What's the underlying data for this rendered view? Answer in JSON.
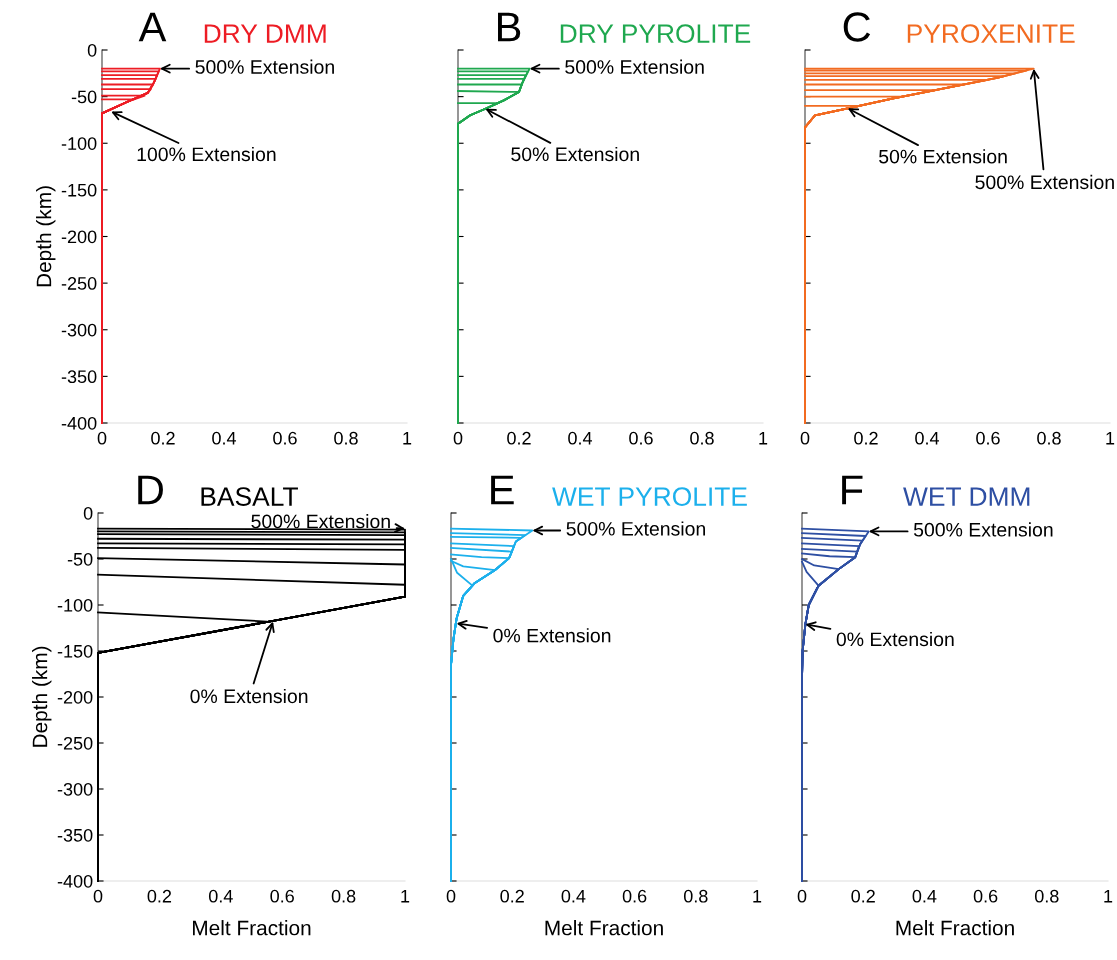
{
  "chart_data": [
    {
      "type": "line",
      "title": "A",
      "subtitle": "DRY DMM",
      "ylabel": "Depth (km)",
      "xlim": [
        0,
        1
      ],
      "ylim": [
        -400,
        0
      ],
      "xticks": [
        0,
        0.2,
        0.4,
        0.6,
        0.8,
        1
      ],
      "yticks": [
        0,
        -50,
        -100,
        -150,
        -200,
        -250,
        -300,
        -350,
        -400
      ],
      "series": [
        {
          "color": "#ed1c24",
          "x": [
            0,
            0,
            0.08,
            0.15,
            0.17,
            0.19,
            0
          ],
          "values": [
            -400,
            -68,
            -56,
            -46,
            -35,
            -20,
            -20
          ]
        },
        {
          "color": "#ed1c24",
          "x": [
            0,
            0,
            0.08,
            0.15,
            0.17,
            0.186,
            0
          ],
          "values": [
            -400,
            -68,
            -56,
            -46,
            -35,
            -23,
            -23
          ]
        },
        {
          "color": "#ed1c24",
          "x": [
            0,
            0,
            0.08,
            0.15,
            0.17,
            0.181,
            0
          ],
          "values": [
            -400,
            -68,
            -56,
            -46,
            -35,
            -27,
            -27
          ]
        },
        {
          "color": "#ed1c24",
          "x": [
            0,
            0,
            0.08,
            0.15,
            0.17,
            0.176,
            0
          ],
          "values": [
            -400,
            -68,
            -56,
            -46,
            -35,
            -31,
            -31
          ]
        },
        {
          "color": "#ed1c24",
          "x": [
            0,
            0,
            0.08,
            0.15,
            0.168,
            0
          ],
          "values": [
            -400,
            -68,
            -56,
            -46,
            -37,
            -37
          ]
        },
        {
          "color": "#ed1c24",
          "x": [
            0,
            0,
            0.08,
            0.15,
            0.16,
            0
          ],
          "values": [
            -400,
            -68,
            -56,
            -46,
            -42,
            -42
          ]
        },
        {
          "color": "#ed1c24",
          "x": [
            0,
            0,
            0.08,
            0.14,
            0
          ],
          "values": [
            -400,
            -68,
            -56,
            -49,
            -49
          ]
        },
        {
          "color": "#ed1c24",
          "x": [
            0,
            0,
            0.08,
            0.1,
            0
          ],
          "values": [
            -400,
            -68,
            -56,
            -53,
            -53
          ]
        }
      ],
      "annotations": [
        {
          "text": "500% Extension",
          "x": 0.19,
          "y": -20
        },
        {
          "text": "100% Extension",
          "x": 0.03,
          "y": -66
        }
      ]
    },
    {
      "type": "line",
      "title": "B",
      "subtitle": "DRY PYROLITE",
      "xlim": [
        0,
        1
      ],
      "ylim": [
        -400,
        0
      ],
      "xticks": [
        0,
        0.2,
        0.4,
        0.6,
        0.8,
        1
      ],
      "yticks": [
        0,
        -50,
        -100,
        -150,
        -200,
        -250,
        -300,
        -350,
        -400
      ],
      "tick_labels": "x",
      "series": [
        {
          "color": "#1fa84f",
          "x": [
            0,
            0,
            0.04,
            0.09,
            0.15,
            0.2,
            0.21,
            0.235,
            0
          ],
          "values": [
            -400,
            -79,
            -70,
            -63,
            -54,
            -45,
            -36,
            -20,
            -20
          ]
        },
        {
          "color": "#1fa84f",
          "x": [
            0,
            0,
            0.04,
            0.09,
            0.15,
            0.2,
            0.21,
            0.229,
            0
          ],
          "values": [
            -400,
            -79,
            -70,
            -63,
            -54,
            -45,
            -36,
            -23,
            -23
          ]
        },
        {
          "color": "#1fa84f",
          "x": [
            0,
            0,
            0.04,
            0.09,
            0.15,
            0.2,
            0.21,
            0.222,
            0
          ],
          "values": [
            -400,
            -79,
            -70,
            -63,
            -54,
            -45,
            -36,
            -27,
            -27
          ]
        },
        {
          "color": "#1fa84f",
          "x": [
            0,
            0,
            0.04,
            0.09,
            0.15,
            0.2,
            0.21,
            0.216,
            0
          ],
          "values": [
            -400,
            -79,
            -70,
            -63,
            -54,
            -45,
            -36,
            -31,
            -31
          ]
        },
        {
          "color": "#1fa84f",
          "x": [
            0,
            0,
            0.04,
            0.09,
            0.15,
            0.2,
            0.209,
            0
          ],
          "values": [
            -400,
            -79,
            -70,
            -63,
            -54,
            -45,
            -37,
            -37
          ]
        },
        {
          "color": "#1fa84f",
          "x": [
            0,
            0,
            0.04,
            0.09,
            0.15,
            0.2,
            0
          ],
          "values": [
            -400,
            -79,
            -70,
            -63,
            -54,
            -45,
            -44
          ]
        },
        {
          "color": "#1fa84f",
          "x": [
            0,
            0,
            0.04,
            0.09,
            0.13,
            0
          ],
          "values": [
            -400,
            -79,
            -70,
            -63,
            -57,
            -57
          ]
        }
      ],
      "annotations": [
        {
          "text": "500% Extension",
          "x": 0.235,
          "y": -20
        },
        {
          "text": "50% Extension",
          "x": 0.09,
          "y": -63
        }
      ]
    },
    {
      "type": "line",
      "title": "C",
      "subtitle": "PYROXENITE",
      "xlim": [
        0,
        1
      ],
      "ylim": [
        -400,
        0
      ],
      "xticks": [
        0,
        0.2,
        0.4,
        0.6,
        0.8,
        1
      ],
      "yticks": [
        0,
        -50,
        -100,
        -150,
        -200,
        -250,
        -300,
        -350,
        -400
      ],
      "tick_labels": "x",
      "series": [
        {
          "color": "#f26b21",
          "x": [
            0,
            0,
            0.033,
            0.14,
            0.29,
            0.46,
            0.63,
            0.75,
            0
          ],
          "values": [
            -400,
            -83,
            -70,
            -62.5,
            -52,
            -41,
            -30,
            -20,
            -20
          ]
        },
        {
          "color": "#f26b21",
          "x": [
            0,
            0,
            0.033,
            0.14,
            0.29,
            0.46,
            0.63,
            0.726,
            0
          ],
          "values": [
            -400,
            -83,
            -70,
            -62.5,
            -52,
            -41,
            -30,
            -22,
            -22
          ]
        },
        {
          "color": "#f26b21",
          "x": [
            0,
            0,
            0.033,
            0.14,
            0.29,
            0.46,
            0.63,
            0.69,
            0
          ],
          "values": [
            -400,
            -83,
            -70,
            -62.5,
            -52,
            -41,
            -30,
            -25,
            -25
          ]
        },
        {
          "color": "#f26b21",
          "x": [
            0,
            0,
            0.033,
            0.14,
            0.29,
            0.46,
            0.63,
            0.654,
            0
          ],
          "values": [
            -400,
            -83,
            -70,
            -62.5,
            -52,
            -41,
            -30,
            -28,
            -28
          ]
        },
        {
          "color": "#f26b21",
          "x": [
            0,
            0,
            0.033,
            0.14,
            0.29,
            0.46,
            0.6,
            0
          ],
          "values": [
            -400,
            -83,
            -70,
            -62.5,
            -52,
            -41,
            -32,
            -32
          ]
        },
        {
          "color": "#f26b21",
          "x": [
            0,
            0,
            0.033,
            0.14,
            0.29,
            0.46,
            0.52,
            0
          ],
          "values": [
            -400,
            -83,
            -70,
            -62.5,
            -52,
            -41,
            -37,
            -37
          ]
        },
        {
          "color": "#f26b21",
          "x": [
            0,
            0,
            0.033,
            0.14,
            0.29,
            0.43,
            0
          ],
          "values": [
            -400,
            -83,
            -70,
            -62.5,
            -52,
            -43,
            -43
          ]
        },
        {
          "color": "#f26b21",
          "x": [
            0,
            0,
            0.033,
            0.14,
            0.29,
            0.32,
            0
          ],
          "values": [
            -400,
            -83,
            -70,
            -62.5,
            -52,
            -50,
            -50
          ]
        },
        {
          "color": "#f26b21",
          "x": [
            0,
            0,
            0.033,
            0.14,
            0.18,
            0
          ],
          "values": [
            -400,
            -83,
            -70,
            -62.5,
            -60,
            -60
          ]
        }
      ],
      "annotations": [
        {
          "text": "500% Extension",
          "x": 0.75,
          "y": -20
        },
        {
          "text": "50% Extension",
          "x": 0.14,
          "y": -62.5
        }
      ]
    },
    {
      "type": "line",
      "title": "D",
      "subtitle": "BASALT",
      "xlabel": "Melt Fraction",
      "ylabel": "Depth (km)",
      "xlim": [
        0,
        1
      ],
      "ylim": [
        -400,
        0
      ],
      "xticks": [
        0,
        0.2,
        0.4,
        0.6,
        0.8,
        1
      ],
      "yticks": [
        0,
        -50,
        -100,
        -150,
        -200,
        -250,
        -300,
        -350,
        -400
      ],
      "series": [
        {
          "color": "#000000",
          "x": [
            0,
            0,
            0.55,
            0
          ],
          "values": [
            -400,
            -152,
            -118,
            -108
          ]
        },
        {
          "color": "#000000",
          "x": [
            0,
            0,
            1,
            1,
            0
          ],
          "values": [
            -400,
            -152,
            -91,
            -78,
            -67
          ]
        },
        {
          "color": "#000000",
          "x": [
            0,
            0,
            1,
            1,
            0
          ],
          "values": [
            -400,
            -152,
            -91,
            -56,
            -49
          ]
        },
        {
          "color": "#000000",
          "x": [
            0,
            0,
            1,
            1,
            0
          ],
          "values": [
            -400,
            -152,
            -91,
            -40,
            -38
          ]
        },
        {
          "color": "#000000",
          "x": [
            0,
            0,
            1,
            1,
            0
          ],
          "values": [
            -400,
            -152,
            -91,
            -34,
            -33
          ]
        },
        {
          "color": "#000000",
          "x": [
            0,
            0,
            1,
            1,
            0
          ],
          "values": [
            -400,
            -152,
            -91,
            -29,
            -28
          ]
        },
        {
          "color": "#000000",
          "x": [
            0,
            0,
            1,
            1,
            0
          ],
          "values": [
            -400,
            -152,
            -91,
            -24,
            -23
          ]
        },
        {
          "color": "#000000",
          "x": [
            0,
            0,
            1,
            1,
            0
          ],
          "values": [
            -400,
            -152,
            -91,
            -21,
            -20
          ]
        },
        {
          "color": "#000000",
          "x": [
            0,
            0,
            1,
            1,
            0
          ],
          "values": [
            -400,
            -152,
            -91,
            -18,
            -17
          ]
        }
      ],
      "annotations": [
        {
          "text": "500% Extension",
          "x": 1,
          "y": -17
        },
        {
          "text": "0% Extension",
          "x": 0.57,
          "y": -118
        }
      ]
    },
    {
      "type": "line",
      "title": "E",
      "subtitle": "WET PYROLITE",
      "xlabel": "Melt Fraction",
      "xlim": [
        0,
        1
      ],
      "ylim": [
        -400,
        0
      ],
      "xticks": [
        0,
        0.2,
        0.4,
        0.6,
        0.8,
        1
      ],
      "yticks": [
        0,
        -50,
        -100,
        -150,
        -200,
        -250,
        -300,
        -350,
        -400
      ],
      "tick_labels": "x",
      "series": [
        {
          "color": "#1cb0ec",
          "x": [
            0,
            0,
            0.008,
            0.018,
            0.04,
            0.078,
            0.144,
            0.19,
            0.212,
            0.266,
            0
          ],
          "values": [
            -400,
            -165,
            -137,
            -115,
            -90,
            -76,
            -62,
            -49,
            -31,
            -19,
            -17
          ]
        },
        {
          "color": "#1cb0ec",
          "x": [
            0,
            0,
            0.008,
            0.018,
            0.04,
            0.078,
            0.144,
            0.19,
            0.212,
            0.243,
            0
          ],
          "values": [
            -400,
            -165,
            -137,
            -115,
            -90,
            -76,
            -62,
            -49,
            -31,
            -24,
            -22
          ]
        },
        {
          "color": "#1cb0ec",
          "x": [
            0,
            0,
            0.008,
            0.018,
            0.04,
            0.078,
            0.144,
            0.19,
            0.212,
            0.23,
            0
          ],
          "values": [
            -400,
            -165,
            -137,
            -115,
            -90,
            -76,
            -62,
            -49,
            -31,
            -27,
            -26
          ]
        },
        {
          "color": "#1cb0ec",
          "x": [
            0,
            0,
            0.008,
            0.018,
            0.04,
            0.078,
            0.144,
            0.19,
            0.206,
            0
          ],
          "values": [
            -400,
            -165,
            -137,
            -115,
            -90,
            -76,
            -62,
            -49,
            -36,
            -33
          ]
        },
        {
          "color": "#1cb0ec",
          "x": [
            0,
            0,
            0.008,
            0.018,
            0.04,
            0.078,
            0.144,
            0.19,
            0.199,
            0
          ],
          "values": [
            -400,
            -165,
            -137,
            -115,
            -90,
            -76,
            -62,
            -49,
            -42,
            -38
          ]
        },
        {
          "color": "#1cb0ec",
          "x": [
            0,
            0,
            0.008,
            0.018,
            0.04,
            0.078,
            0.144,
            0.19,
            0.1,
            0
          ],
          "values": [
            -400,
            -165,
            -137,
            -115,
            -90,
            -76,
            -62,
            -49,
            -48,
            -45
          ]
        },
        {
          "color": "#1cb0ec",
          "x": [
            0,
            0,
            0.008,
            0.018,
            0.04,
            0.078,
            0.144,
            0.04,
            0
          ],
          "values": [
            -400,
            -165,
            -137,
            -115,
            -90,
            -76,
            -62,
            -58,
            -52
          ]
        },
        {
          "color": "#1cb0ec",
          "x": [
            0,
            0,
            0.008,
            0.018,
            0.04,
            0.07,
            0.02,
            0
          ],
          "values": [
            -400,
            -165,
            -137,
            -115,
            -90,
            -79,
            -65,
            -50
          ]
        }
      ],
      "annotations": [
        {
          "text": "500% Extension",
          "x": 0.266,
          "y": -19
        },
        {
          "text": "0% Extension",
          "x": 0.018,
          "y": -120
        }
      ]
    },
    {
      "type": "line",
      "title": "F",
      "subtitle": "WET DMM",
      "xlabel": "Melt Fraction",
      "xlim": [
        0,
        1
      ],
      "ylim": [
        -400,
        0
      ],
      "xticks": [
        0,
        0.2,
        0.4,
        0.6,
        0.8,
        1
      ],
      "yticks": [
        0,
        -50,
        -100,
        -150,
        -200,
        -250,
        -300,
        -350,
        -400
      ],
      "tick_labels": "x",
      "series": [
        {
          "color": "#2e4fa3",
          "x": [
            0,
            0,
            0.002,
            0.011,
            0.022,
            0.054,
            0.12,
            0.174,
            0.19,
            0.218,
            0
          ],
          "values": [
            -400,
            -179,
            -150,
            -121,
            -100,
            -79,
            -61,
            -48,
            -34,
            -20,
            -17
          ]
        },
        {
          "color": "#2e4fa3",
          "x": [
            0,
            0,
            0.002,
            0.011,
            0.022,
            0.054,
            0.12,
            0.174,
            0.19,
            0.208,
            0
          ],
          "values": [
            -400,
            -179,
            -150,
            -121,
            -100,
            -79,
            -61,
            -48,
            -34,
            -25,
            -22
          ]
        },
        {
          "color": "#2e4fa3",
          "x": [
            0,
            0,
            0.002,
            0.011,
            0.022,
            0.054,
            0.12,
            0.174,
            0.19,
            0.197,
            0
          ],
          "values": [
            -400,
            -179,
            -150,
            -121,
            -100,
            -79,
            -61,
            -48,
            -34,
            -30,
            -27
          ]
        },
        {
          "color": "#2e4fa3",
          "x": [
            0,
            0,
            0.002,
            0.011,
            0.022,
            0.054,
            0.12,
            0.174,
            0.186,
            0
          ],
          "values": [
            -400,
            -179,
            -150,
            -121,
            -100,
            -79,
            -61,
            -48,
            -36,
            -33
          ]
        },
        {
          "color": "#2e4fa3",
          "x": [
            0,
            0,
            0.002,
            0.011,
            0.022,
            0.054,
            0.12,
            0.174,
            0.18,
            0
          ],
          "values": [
            -400,
            -179,
            -150,
            -121,
            -100,
            -79,
            -61,
            -48,
            -42,
            -39
          ]
        },
        {
          "color": "#2e4fa3",
          "x": [
            0,
            0,
            0.002,
            0.011,
            0.022,
            0.054,
            0.12,
            0.174,
            0.09,
            0
          ],
          "values": [
            -400,
            -179,
            -150,
            -121,
            -100,
            -79,
            -61,
            -48,
            -47,
            -44
          ]
        },
        {
          "color": "#2e4fa3",
          "x": [
            0,
            0,
            0.002,
            0.011,
            0.022,
            0.054,
            0.12,
            0.04,
            0
          ],
          "values": [
            -400,
            -179,
            -150,
            -121,
            -100,
            -79,
            -61,
            -57,
            -50
          ]
        },
        {
          "color": "#2e4fa3",
          "x": [
            0,
            0,
            0.002,
            0.011,
            0.022,
            0.054,
            0.015,
            0
          ],
          "values": [
            -400,
            -179,
            -150,
            -121,
            -100,
            -79,
            -64,
            -53
          ]
        }
      ],
      "annotations": [
        {
          "text": "500% Extension",
          "x": 0.218,
          "y": -20
        },
        {
          "text": "0% Extension",
          "x": 0.011,
          "y": -121
        }
      ]
    }
  ]
}
